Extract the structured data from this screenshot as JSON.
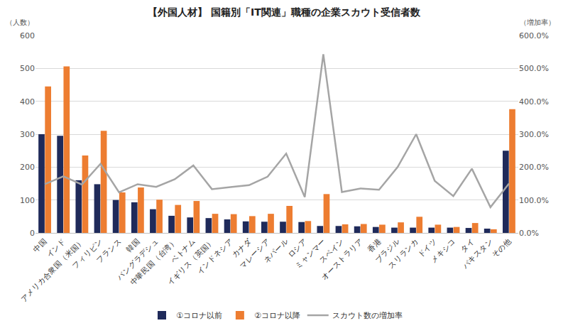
{
  "chart_data": {
    "type": "bar",
    "title": "【外国人材】 国籍別「IT関連」職種の企業スカウト受信者数",
    "y_label": "（人数）",
    "y2_label": "（増加率）",
    "categories": [
      "中国",
      "インド",
      "アメリカ合衆国（米国）",
      "フィリピン",
      "フランス",
      "韓国",
      "バングラデシュ",
      "中華民国（台湾）",
      "ベトナム",
      "イギリス（英国）",
      "インドネシア",
      "カナダ",
      "マレーシア",
      "ネパール",
      "ロシア",
      "ミャンマー",
      "スペイン",
      "オーストラリア",
      "香港",
      "ブラジル",
      "スリランカ",
      "ドイツ",
      "メキシコ",
      "タイ",
      "パキスタン",
      "その他"
    ],
    "series": [
      {
        "name": "①コロナ以前",
        "type": "bar",
        "color": "#1f2a5a",
        "values": [
          300,
          295,
          160,
          148,
          100,
          93,
          72,
          52,
          47,
          45,
          41,
          35,
          34,
          34,
          33,
          21,
          21,
          20,
          18,
          16,
          16,
          16,
          16,
          15,
          13,
          250
        ]
      },
      {
        "name": "②コロナ以降",
        "type": "bar",
        "color": "#ed7d31",
        "values": [
          445,
          506,
          235,
          310,
          123,
          138,
          101,
          85,
          97,
          58,
          57,
          51,
          58,
          82,
          36,
          118,
          26,
          27,
          25,
          32,
          49,
          25,
          18,
          30,
          11,
          376
        ]
      },
      {
        "name": "スカウト数の増加率",
        "type": "line",
        "axis": "y2",
        "color": "#a5a5a5",
        "line_style": "solid",
        "values": [
          148,
          172,
          147,
          210,
          123,
          148,
          140,
          163,
          205,
          133,
          139,
          145,
          171,
          241,
          109,
          543,
          124,
          135,
          131,
          200,
          300,
          158,
          112,
          195,
          78,
          150
        ]
      }
    ],
    "ylim": [
      0,
      600
    ],
    "yticks": [
      0,
      100,
      200,
      300,
      400,
      500,
      600
    ],
    "y2lim": [
      0,
      600
    ],
    "y2ticks": [
      {
        "value": 0,
        "label": "0.0%"
      },
      {
        "value": 100,
        "label": "100.0%"
      },
      {
        "value": 200,
        "label": "200.0%"
      },
      {
        "value": 300,
        "label": "300.0%"
      },
      {
        "value": 400,
        "label": "400.0%"
      },
      {
        "value": 500,
        "label": "500.0%"
      },
      {
        "value": 600,
        "label": "600.0%"
      }
    ],
    "grid": true,
    "legend": "bottom"
  }
}
